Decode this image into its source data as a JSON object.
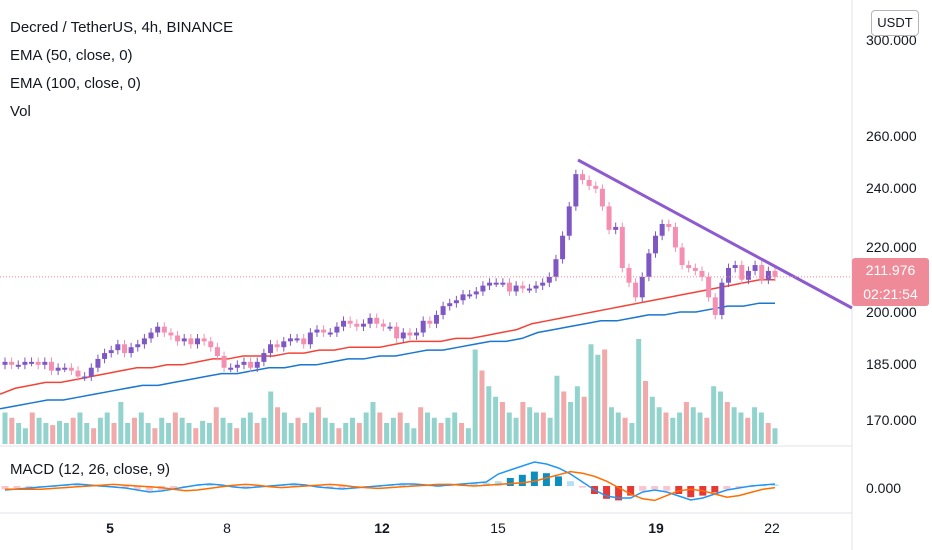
{
  "header": {
    "title": "Decred / TetherUS, 4h, BINANCE",
    "indicators": [
      "EMA (50, close, 0)",
      "EMA (100, close, 0)",
      "Vol"
    ],
    "currency_button": "USDT"
  },
  "macd": {
    "label": "MACD (12, 26, close, 9)",
    "ytick": "0.000"
  },
  "price_badge": {
    "price": "211.976",
    "countdown": "02:21:54"
  },
  "colors": {
    "up": "#7e57c2",
    "down": "#f48fb1",
    "ema50": "#f44336",
    "ema100": "#1976d2",
    "trendline": "#8e5acf",
    "vol_up": "#80cbc4",
    "vol_down": "#ef9a9a",
    "macd_line": "#2196f3",
    "signal_line": "#ff6d00"
  },
  "chart_data": {
    "type": "candlestick",
    "symbol": "Decred / TetherUS",
    "interval": "4h",
    "exchange": "BINANCE",
    "y_ticks": [
      "300.000",
      "260.000",
      "240.000",
      "220.000",
      "200.000",
      "185.000",
      "170.000"
    ],
    "x_ticks": [
      "5",
      "8",
      "12",
      "15",
      "19",
      "22"
    ],
    "last_price": 211.976,
    "candle_closes": [
      183,
      182,
      182,
      183,
      183,
      182,
      183,
      180,
      181,
      181,
      180,
      178,
      178,
      181,
      184,
      186,
      187,
      189,
      186,
      188,
      189,
      191,
      193,
      195,
      193,
      192,
      190,
      191,
      189,
      191,
      190,
      188,
      185,
      181,
      181,
      182,
      183,
      181,
      183,
      186,
      189,
      188,
      190,
      191,
      191,
      189,
      193,
      194,
      193,
      193,
      195,
      197,
      196,
      195,
      196,
      198,
      196,
      195,
      195,
      191,
      193,
      192,
      193,
      197,
      196,
      199,
      202,
      203,
      204,
      206,
      206,
      207,
      209,
      210,
      210,
      210,
      207,
      209,
      208,
      208,
      209,
      210,
      212,
      218,
      226,
      236,
      247,
      245,
      243,
      242,
      236,
      228,
      229,
      215,
      210,
      205,
      212,
      220,
      226,
      230,
      229,
      222,
      216,
      215,
      214,
      212,
      205,
      199,
      210,
      215,
      216,
      211,
      214,
      216,
      211,
      214,
      212
    ],
    "ema50": [
      172,
      174,
      175,
      176,
      176,
      177,
      178,
      179,
      180,
      181,
      181,
      182,
      182,
      183,
      184,
      184,
      185,
      185,
      185,
      186,
      186,
      187,
      187,
      188,
      188,
      188,
      189,
      190,
      190,
      190,
      191,
      191,
      192,
      193,
      194,
      196,
      197,
      198,
      199,
      200,
      201,
      202,
      203,
      204,
      205,
      206,
      207,
      208,
      209,
      210,
      211,
      211
    ],
    "ema100": [
      167,
      168,
      169,
      170,
      170,
      171,
      172,
      173,
      174,
      175,
      175,
      176,
      177,
      178,
      179,
      179,
      180,
      181,
      181,
      182,
      182,
      183,
      184,
      184,
      185,
      185,
      186,
      187,
      187,
      188,
      189,
      190,
      190,
      191,
      193,
      194,
      195,
      196,
      197,
      197,
      198,
      199,
      199,
      200,
      200,
      201,
      202,
      202,
      203,
      203
    ],
    "trendline": {
      "start": 250,
      "end": 200
    },
    "volume_relative": [
      0.3,
      0.25,
      0.2,
      0.15,
      0.3,
      0.25,
      0.2,
      0.18,
      0.22,
      0.2,
      0.25,
      0.3,
      0.2,
      0.15,
      0.25,
      0.3,
      0.2,
      0.4,
      0.2,
      0.25,
      0.3,
      0.2,
      0.15,
      0.25,
      0.2,
      0.3,
      0.25,
      0.2,
      0.15,
      0.22,
      0.2,
      0.35,
      0.25,
      0.2,
      0.15,
      0.25,
      0.3,
      0.2,
      0.25,
      0.5,
      0.35,
      0.3,
      0.2,
      0.25,
      0.2,
      0.3,
      0.35,
      0.25,
      0.2,
      0.15,
      0.2,
      0.25,
      0.2,
      0.3,
      0.4,
      0.3,
      0.2,
      0.25,
      0.3,
      0.2,
      0.15,
      0.35,
      0.3,
      0.25,
      0.2,
      0.25,
      0.3,
      0.2,
      0.15,
      0.9,
      0.7,
      0.55,
      0.45,
      0.4,
      0.3,
      0.25,
      0.4,
      0.35,
      0.3,
      0.3,
      0.25,
      0.65,
      0.5,
      0.4,
      0.55,
      0.45,
      0.95,
      0.85,
      0.9,
      0.35,
      0.3,
      0.25,
      0.2,
      1.0,
      0.6,
      0.45,
      0.35,
      0.3,
      0.25,
      0.3,
      0.4,
      0.35,
      0.3,
      0.25,
      0.55,
      0.5,
      0.4,
      0.35,
      0.3,
      0.25,
      0.35,
      0.3,
      0.2,
      0.15
    ],
    "macd_hist": [
      -0.2,
      -0.15,
      -0.1,
      -0.05,
      0,
      0.05,
      0.1,
      0.05,
      0,
      -0.05,
      -0.1,
      -0.2,
      -0.3,
      -0.25,
      -0.15,
      -0.05,
      0.05,
      0.1,
      0.05,
      -0.05,
      -0.1,
      -0.05,
      0,
      0.05,
      0.1,
      0.05,
      -0.05,
      -0.1,
      -0.15,
      -0.1,
      -0.05,
      0,
      0.05,
      0.1,
      0.1,
      0.05,
      0,
      0.05,
      0.1,
      0.15,
      0.2,
      0.3,
      0.5,
      0.7,
      0.9,
      0.8,
      0.6,
      0.3,
      -0.1,
      -0.5,
      -0.8,
      -0.9,
      -0.6,
      -0.3,
      -0.2,
      -0.3,
      -0.5,
      -0.7,
      -0.6,
      -0.4,
      -0.2,
      -0.1,
      0,
      0.05,
      0.1
    ]
  }
}
